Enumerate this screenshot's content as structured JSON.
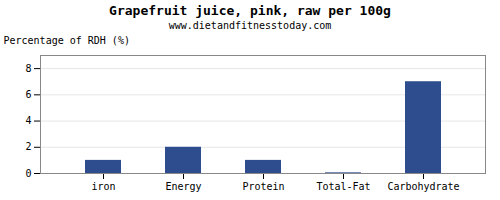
{
  "chart_data": {
    "type": "bar",
    "title": "Grapefruit juice, pink, raw per 100g",
    "subtitle": "www.dietandfitnesstoday.com",
    "categories": [
      "iron",
      "Energy",
      "Protein",
      "Total-Fat",
      "Carbohydrate"
    ],
    "values": [
      1.0,
      2.0,
      1.0,
      0.05,
      7.0
    ],
    "color": "#2e4d8e",
    "ylabel": "Percentage of RDH (%)",
    "ylim": [
      0,
      9
    ],
    "yticks": [
      0,
      2,
      4,
      6,
      8
    ],
    "grid": true
  }
}
